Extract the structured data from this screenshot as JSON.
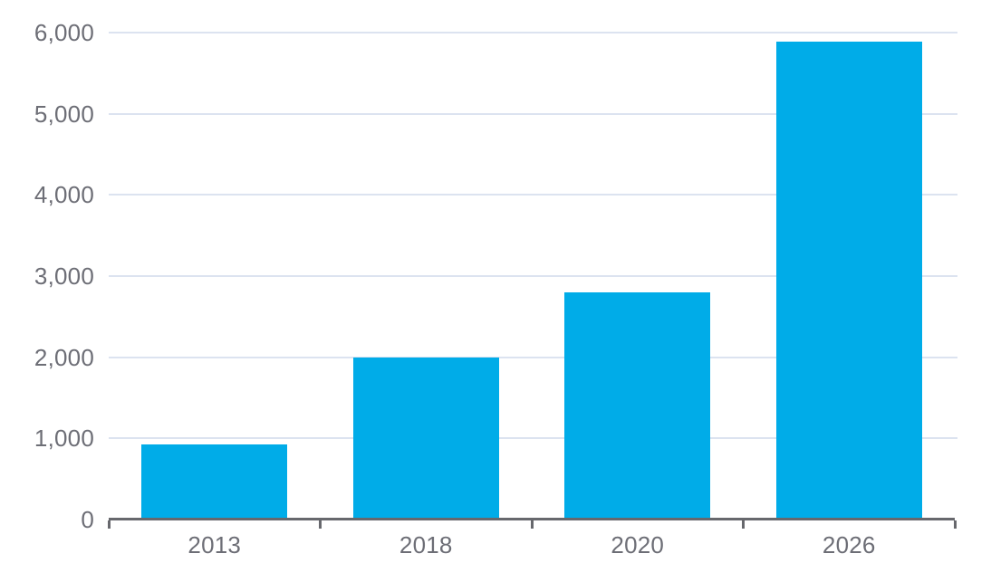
{
  "chart": {
    "colors": {
      "bar": "#00ACE8",
      "gridline": "#DCE3F0",
      "axis_line": "#67686D",
      "tick_label": "#6D6E76",
      "background": "#FFFFFF"
    }
  },
  "chart_data": {
    "type": "bar",
    "title": "",
    "xlabel": "",
    "ylabel": "",
    "categories": [
      "2013",
      "2018",
      "2020",
      "2026"
    ],
    "values": [
      930,
      2000,
      2800,
      5885
    ],
    "ylim": [
      0,
      6000
    ],
    "yticks": [
      0,
      1000,
      2000,
      3000,
      4000,
      5000,
      6000
    ],
    "ytick_labels": [
      "0",
      "1,000",
      "2,000",
      "3,000",
      "4,000",
      "5,000",
      "6,000"
    ],
    "grid": "horizontal",
    "legend": "none",
    "series_color": "#00ACE8"
  }
}
